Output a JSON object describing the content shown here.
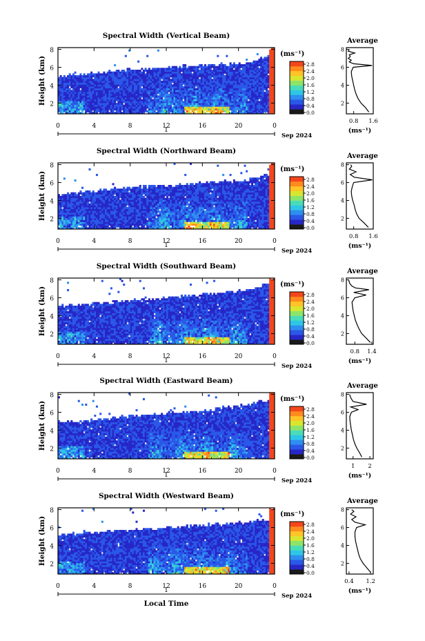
{
  "footer": {
    "xlabel": "Local Time",
    "date_label": "Sep 2024",
    "day_label": "1"
  },
  "colorbar": {
    "unit_label": "(ms⁻¹)",
    "ticks": [
      "0.0",
      "0.4",
      "0.8",
      "1.2",
      "1.6",
      "2.0",
      "2.4",
      "2.8"
    ],
    "range": [
      0.0,
      3.0
    ],
    "colors": [
      "#1a1a1a",
      "#2727c8",
      "#2a58e8",
      "#2e8ef0",
      "#2ec6e6",
      "#4adcb8",
      "#8ee468",
      "#d8e630",
      "#ffc428",
      "#ff8a1e",
      "#f4461c"
    ]
  },
  "chart_data": [
    {
      "type": "heatmap",
      "title": "Spectral Width (Vertical Beam)",
      "ylabel": "Height (km)",
      "x_ticks": [
        "0",
        "4",
        "8",
        "12",
        "16",
        "20",
        "0"
      ],
      "y_ticks": [
        "2",
        "4",
        "6",
        "8"
      ],
      "xlim": [
        0,
        24
      ],
      "ylim": [
        0.8,
        8.2
      ],
      "cloud_top_km": [
        5.0,
        5.3,
        5.6,
        5.8,
        6.0,
        6.2,
        6.3,
        6.5,
        7.6
      ],
      "profile": {
        "title": "Average",
        "xlabel": "(ms⁻¹)",
        "x_ticks": [
          "0.8",
          "1.6"
        ],
        "xlim": [
          0.5,
          1.6
        ],
        "heights_km": [
          1.0,
          1.5,
          2.0,
          2.5,
          3.0,
          3.5,
          4.0,
          4.5,
          5.0,
          5.5,
          6.0,
          6.2,
          6.4,
          6.6,
          6.8,
          7.0,
          7.2,
          7.4,
          7.6,
          7.8,
          8.0
        ],
        "values": [
          1.42,
          1.28,
          1.1,
          0.98,
          0.9,
          0.84,
          0.8,
          0.76,
          0.72,
          0.7,
          0.78,
          1.55,
          0.8,
          0.62,
          0.7,
          0.58,
          0.66,
          0.62,
          0.84,
          0.58,
          0.62
        ]
      }
    },
    {
      "type": "heatmap",
      "title": "Spectral Width (Northward Beam)",
      "ylabel": "Height (km)",
      "x_ticks": [
        "0",
        "4",
        "8",
        "12",
        "16",
        "20",
        "0"
      ],
      "y_ticks": [
        "2",
        "4",
        "6",
        "8"
      ],
      "xlim": [
        0,
        24
      ],
      "ylim": [
        0.8,
        8.2
      ],
      "cloud_top_km": [
        4.7,
        5.0,
        5.3,
        5.5,
        5.7,
        5.9,
        6.1,
        6.3,
        7.2
      ],
      "profile": {
        "title": "Average",
        "xlabel": "(ms⁻¹)",
        "x_ticks": [
          "0.8",
          "1.6"
        ],
        "xlim": [
          0.5,
          1.6
        ],
        "heights_km": [
          1.0,
          1.5,
          2.0,
          2.5,
          3.0,
          3.5,
          4.0,
          4.5,
          5.0,
          5.5,
          6.0,
          6.3,
          6.6,
          6.9,
          7.2,
          7.5,
          7.8,
          8.0
        ],
        "values": [
          1.4,
          1.22,
          1.02,
          0.92,
          0.86,
          0.82,
          0.76,
          0.72,
          0.7,
          0.74,
          0.8,
          1.56,
          0.82,
          0.66,
          0.9,
          0.62,
          0.72,
          0.68
        ]
      }
    },
    {
      "type": "heatmap",
      "title": "Spectral Width (Southward Beam)",
      "ylabel": "Height (km)",
      "x_ticks": [
        "0",
        "4",
        "8",
        "12",
        "16",
        "20",
        "0"
      ],
      "y_ticks": [
        "2",
        "4",
        "6",
        "8"
      ],
      "xlim": [
        0,
        24
      ],
      "ylim": [
        0.8,
        8.2
      ],
      "cloud_top_km": [
        5.1,
        5.3,
        5.6,
        5.8,
        6.0,
        6.3,
        6.6,
        6.9,
        7.8
      ],
      "profile": {
        "title": "Average",
        "xlabel": "(ms⁻¹)",
        "x_ticks": [
          "0.8",
          "1.4"
        ],
        "xlim": [
          0.5,
          1.45
        ],
        "heights_km": [
          1.0,
          1.5,
          2.0,
          2.5,
          3.0,
          3.5,
          4.0,
          4.5,
          5.0,
          5.5,
          6.0,
          6.3,
          6.6,
          6.9,
          7.1,
          7.3,
          7.6,
          8.0
        ],
        "values": [
          1.35,
          1.2,
          1.04,
          0.95,
          0.88,
          0.82,
          0.78,
          0.74,
          0.72,
          0.7,
          0.8,
          1.2,
          0.76,
          1.3,
          0.82,
          0.7,
          0.62,
          0.58
        ]
      }
    },
    {
      "type": "heatmap",
      "title": "Spectral Width (Eastward Beam)",
      "ylabel": "Height (km)",
      "x_ticks": [
        "0",
        "4",
        "8",
        "12",
        "16",
        "20",
        "0"
      ],
      "y_ticks": [
        "2",
        "4",
        "6",
        "8"
      ],
      "xlim": [
        0,
        24
      ],
      "ylim": [
        0.8,
        8.2
      ],
      "cloud_top_km": [
        4.9,
        5.1,
        5.4,
        5.7,
        5.9,
        6.1,
        6.4,
        6.9,
        7.6
      ],
      "profile": {
        "title": "Average",
        "xlabel": "(ms⁻¹)",
        "x_ticks": [
          "1",
          "2"
        ],
        "xlim": [
          0.6,
          2.2
        ],
        "heights_km": [
          1.0,
          1.5,
          2.0,
          2.5,
          3.0,
          3.5,
          4.0,
          4.5,
          5.0,
          5.5,
          6.0,
          6.3,
          6.6,
          6.9,
          7.2,
          7.5,
          7.8,
          8.0
        ],
        "values": [
          1.52,
          1.38,
          1.22,
          1.1,
          1.02,
          0.96,
          0.9,
          0.86,
          0.82,
          0.8,
          0.9,
          1.3,
          0.86,
          1.8,
          1.0,
          0.9,
          0.82,
          0.8
        ]
      }
    },
    {
      "type": "heatmap",
      "title": "Spectral Width (Westward Beam)",
      "ylabel": "Height (km)",
      "x_ticks": [
        "0",
        "4",
        "8",
        "12",
        "16",
        "20",
        "0"
      ],
      "y_ticks": [
        "2",
        "4",
        "6",
        "8"
      ],
      "xlim": [
        0,
        24
      ],
      "ylim": [
        0.8,
        8.2
      ],
      "cloud_top_km": [
        5.2,
        5.4,
        5.6,
        5.8,
        6.0,
        6.2,
        6.4,
        6.6,
        7.0
      ],
      "profile": {
        "title": "Average",
        "xlabel": "(ms⁻¹)",
        "x_ticks": [
          "0.4",
          "1.2"
        ],
        "xlim": [
          0.3,
          1.3
        ],
        "heights_km": [
          1.0,
          1.5,
          2.0,
          2.5,
          3.0,
          3.5,
          4.0,
          4.5,
          5.0,
          5.5,
          6.0,
          6.3,
          6.6,
          6.9,
          7.2,
          7.5,
          7.8,
          8.0
        ],
        "values": [
          1.2,
          1.06,
          0.92,
          0.82,
          0.76,
          0.72,
          0.68,
          0.64,
          0.62,
          0.62,
          0.68,
          1.0,
          0.62,
          0.5,
          0.66,
          0.46,
          0.58,
          0.5
        ]
      }
    }
  ]
}
